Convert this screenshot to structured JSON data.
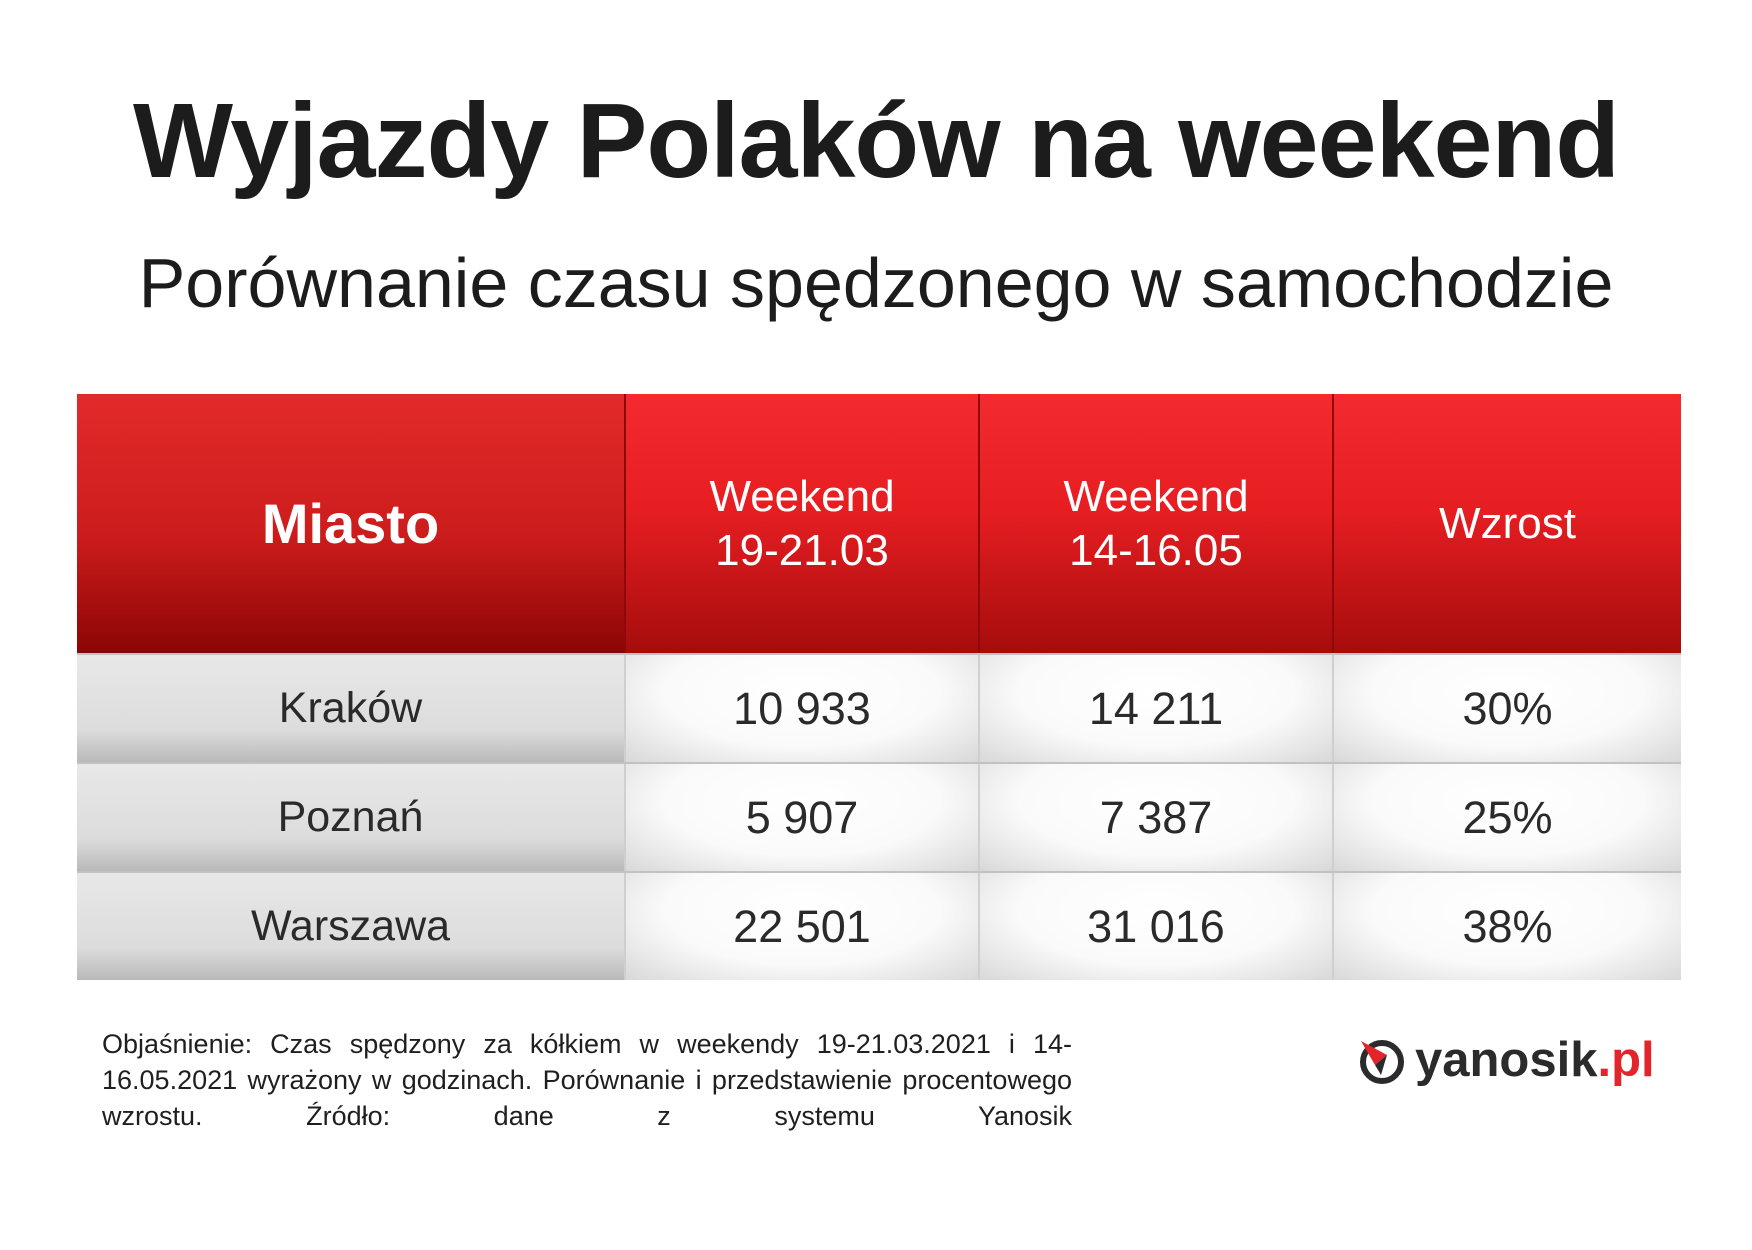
{
  "title": "Wyjazdy Polaków na weekend",
  "subtitle": "Porównanie czasu spędzonego w samochodzie",
  "table": {
    "headers": {
      "city": "Miasto",
      "week1_line1": "Weekend",
      "week1_line2": "19-21.03",
      "week2_line1": "Weekend",
      "week2_line2": "14-16.05",
      "growth": "Wzrost"
    },
    "rows": [
      {
        "city": "Kraków",
        "week1": "10 933",
        "week2": "14 211",
        "growth": "30%"
      },
      {
        "city": "Poznań",
        "week1": "5 907",
        "week2": "7 387",
        "growth": "25%"
      },
      {
        "city": "Warszawa",
        "week1": "22 501",
        "week2": "31 016",
        "growth": "38%"
      }
    ]
  },
  "note": "Objaśnienie: Czas spędzony za kółkiem w weekendy 19-21.03.2021 i 14-16.05.2021 wyrażony w godzinach. Porównanie i przedstawienie procentowego wzrostu. Źródło: dane z systemu Yanosik",
  "logo": {
    "main": "yanosik",
    "tld": ".pl",
    "icon": "yanosik-logo-icon",
    "colors": {
      "red": "#e3242b",
      "dark": "#2b2b2b"
    }
  },
  "colors": {
    "header_red": "#e61e22",
    "header_dark_red": "#8c0505",
    "city_gray": "#dcdcdc"
  }
}
